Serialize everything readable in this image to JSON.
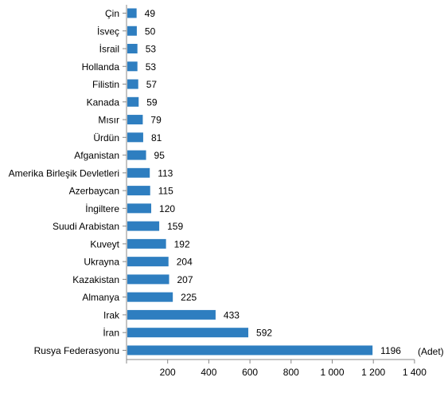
{
  "chart_data": {
    "type": "bar",
    "orientation": "horizontal",
    "categories": [
      "Çin",
      "İsveç",
      "İsrail",
      "Hollanda",
      "Filistin",
      "Kanada",
      "Mısır",
      "Ürdün",
      "Afganistan",
      "Amerika Birleşik Devletleri",
      "Azerbaycan",
      "İngiltere",
      "Suudi Arabistan",
      "Kuveyt",
      "Ukrayna",
      "Kazakistan",
      "Almanya",
      "Irak",
      "İran",
      "Rusya Federasyonu"
    ],
    "values": [
      49,
      50,
      53,
      53,
      57,
      59,
      79,
      81,
      95,
      113,
      115,
      120,
      159,
      192,
      204,
      207,
      225,
      433,
      592,
      1196
    ],
    "data_labels": [
      "49",
      "50",
      "53",
      "53",
      "57",
      "59",
      "79",
      "81",
      "95",
      "113",
      "115",
      "120",
      "159",
      "192",
      "204",
      "207",
      "225",
      "433",
      "592",
      "1196"
    ],
    "x_ticks": [
      200,
      400,
      600,
      800,
      1000,
      1200,
      1400
    ],
    "x_tick_labels": [
      "200",
      "400",
      "600",
      "800",
      "1 000",
      "1 200",
      "1 400"
    ],
    "xlim": [
      0,
      1400
    ],
    "unit_label": "(Adet)",
    "bar_color": "#2E7EC0",
    "grid": false,
    "legend": "none"
  }
}
